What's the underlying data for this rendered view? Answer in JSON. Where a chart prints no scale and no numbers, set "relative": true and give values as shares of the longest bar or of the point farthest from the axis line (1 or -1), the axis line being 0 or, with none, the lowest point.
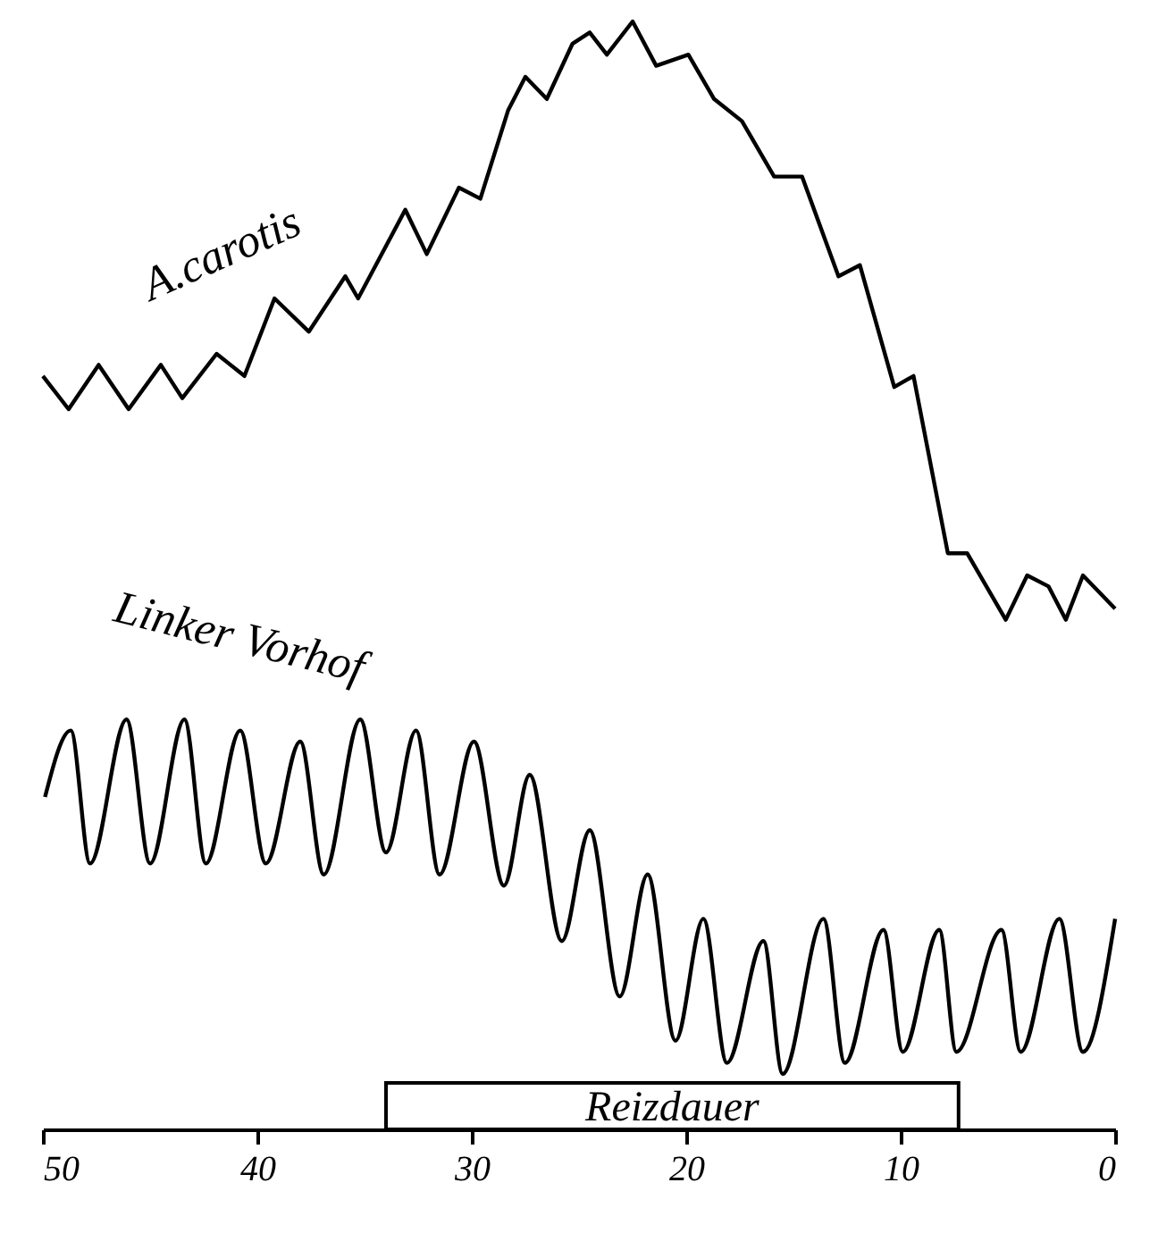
{
  "chart_data": {
    "type": "line",
    "relative": true,
    "xlim": [
      50,
      0
    ],
    "xticks": [
      50,
      40,
      30,
      20,
      10,
      0
    ],
    "grid": false,
    "line_style": "solid",
    "series": [
      {
        "name": "A.carotis",
        "color": "#000000",
        "x": [
          50.0,
          48.8,
          47.4,
          46.0,
          44.5,
          43.5,
          41.9,
          40.6,
          39.2,
          37.6,
          35.9,
          35.3,
          33.1,
          32.1,
          30.6,
          29.6,
          28.3,
          27.5,
          26.5,
          25.3,
          24.5,
          23.7,
          22.5,
          21.4,
          19.9,
          18.7,
          17.4,
          15.9,
          14.6,
          12.9,
          11.9,
          10.3,
          9.4,
          7.8,
          6.9,
          5.1,
          4.1,
          3.1,
          2.3,
          1.5,
          0.0
        ],
        "values": [
          0.68,
          0.65,
          0.69,
          0.65,
          0.69,
          0.66,
          0.7,
          0.68,
          0.75,
          0.72,
          0.77,
          0.75,
          0.83,
          0.79,
          0.85,
          0.84,
          0.92,
          0.95,
          0.93,
          0.98,
          0.99,
          0.97,
          1.0,
          0.96,
          0.97,
          0.93,
          0.91,
          0.86,
          0.86,
          0.77,
          0.78,
          0.67,
          0.68,
          0.52,
          0.52,
          0.46,
          0.5,
          0.49,
          0.46,
          0.5,
          0.47
        ]
      },
      {
        "name": "Linker Vorhof",
        "color": "#000000",
        "x": [
          49.9,
          48.7,
          47.8,
          46.1,
          45.0,
          43.4,
          42.4,
          40.8,
          39.6,
          38.0,
          36.9,
          35.2,
          34.0,
          32.6,
          31.5,
          29.9,
          28.5,
          27.3,
          25.8,
          24.5,
          23.1,
          21.8,
          20.5,
          19.2,
          18.1,
          16.4,
          15.5,
          13.6,
          12.6,
          10.8,
          9.9,
          8.2,
          7.4,
          5.3,
          4.4,
          2.6,
          1.5,
          0.0
        ],
        "values": [
          0.3,
          0.36,
          0.24,
          0.37,
          0.24,
          0.37,
          0.24,
          0.36,
          0.24,
          0.35,
          0.23,
          0.37,
          0.25,
          0.36,
          0.23,
          0.35,
          0.22,
          0.32,
          0.17,
          0.27,
          0.12,
          0.23,
          0.08,
          0.19,
          0.06,
          0.17,
          0.05,
          0.19,
          0.06,
          0.18,
          0.07,
          0.18,
          0.07,
          0.18,
          0.07,
          0.19,
          0.07,
          0.19
        ]
      }
    ],
    "bands": [
      {
        "axis": "x",
        "from": 34.0,
        "to": 7.3,
        "label": "Reizdauer"
      }
    ]
  }
}
